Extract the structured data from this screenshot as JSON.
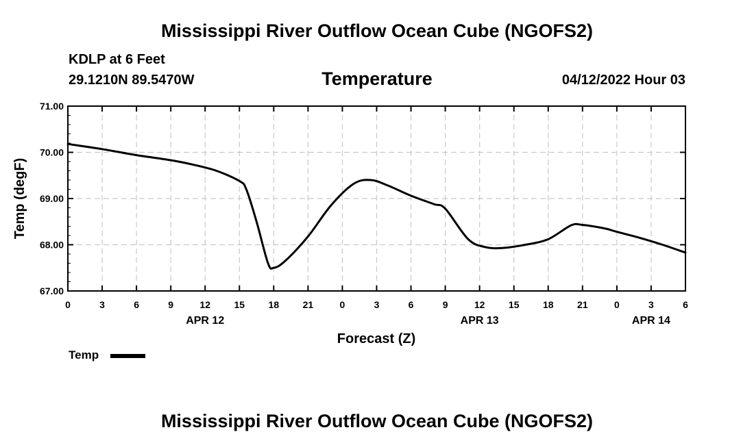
{
  "page": {
    "main_title": "Mississippi River Outflow Ocean Cube (NGOFS2)",
    "footer_title": "Mississippi River Outflow Ocean Cube (NGOFS2)",
    "station": "KDLP at 6 Feet",
    "coords": "29.1210N  89.5470W",
    "datetime": "04/12/2022 Hour 03"
  },
  "chart_data": {
    "type": "line",
    "title": "Temperature",
    "xlabel": "Forecast (Z)",
    "ylabel": "Temp (degF)",
    "ylim": [
      67.0,
      71.0
    ],
    "xlim": [
      0,
      54
    ],
    "yticks": [
      "67.00",
      "68.00",
      "69.00",
      "70.00",
      "71.00"
    ],
    "yvalues": [
      67,
      68,
      69,
      70,
      71
    ],
    "xtick_hours": [
      0,
      3,
      6,
      9,
      12,
      15,
      18,
      21,
      24,
      27,
      30,
      33,
      36,
      39,
      42,
      45,
      48,
      51,
      54
    ],
    "xtick_labels": [
      "0",
      "3",
      "6",
      "9",
      "12",
      "15",
      "18",
      "21",
      "0",
      "3",
      "6",
      "9",
      "12",
      "15",
      "18",
      "21",
      "0",
      "3",
      "6"
    ],
    "date_labels": [
      {
        "hour": 12,
        "text": "APR 12"
      },
      {
        "hour": 36,
        "text": "APR 13"
      },
      {
        "hour": 51,
        "text": "APR 14"
      }
    ],
    "grid": true,
    "legend": "bottom-left",
    "series": [
      {
        "name": "Temp",
        "color": "#000000",
        "x": [
          0,
          3,
          6,
          9,
          11,
          13,
          15,
          15.6,
          16.5,
          17.5,
          18,
          19,
          21,
          23,
          25,
          26.5,
          28,
          30,
          32,
          33,
          35,
          36.5,
          38,
          40,
          42,
          44,
          45,
          47,
          48,
          50,
          52,
          54
        ],
        "y": [
          70.18,
          70.07,
          69.94,
          69.83,
          69.73,
          69.6,
          69.38,
          69.2,
          68.5,
          67.6,
          67.5,
          67.65,
          68.18,
          68.85,
          69.32,
          69.4,
          69.28,
          69.06,
          68.88,
          68.78,
          68.12,
          67.95,
          67.93,
          68.0,
          68.12,
          68.42,
          68.43,
          68.35,
          68.28,
          68.15,
          68.0,
          67.83
        ]
      }
    ]
  }
}
